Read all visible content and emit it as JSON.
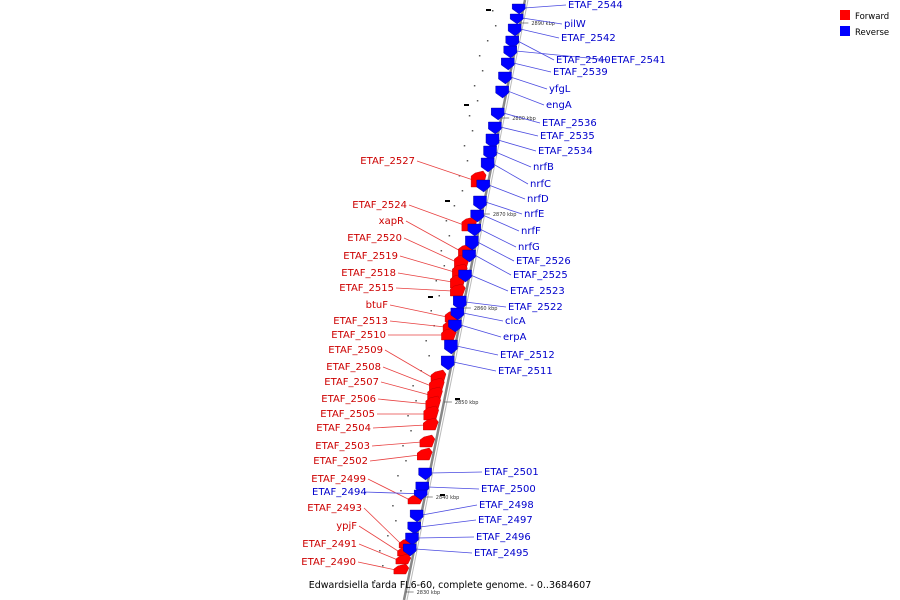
{
  "colors": {
    "forward": "#ff0000",
    "reverse": "#0000ff",
    "forward_label": "#cc0000",
    "reverse_label": "#0000cc",
    "forward_line": "#e84040",
    "reverse_line": "#4a4ae0",
    "backbone": "#888888"
  },
  "legend": {
    "forward": "Forward",
    "reverse": "Reverse"
  },
  "caption": "Edwardsiella tarda FL6-60, complete genome. - 0..3684607",
  "ticks": [
    {
      "label": "2890 kbp"
    },
    {
      "label": "2880 kbp"
    },
    {
      "label": "2870 kbp"
    },
    {
      "label": "2860 kbp"
    },
    {
      "label": "2850 kbp"
    },
    {
      "label": "2840 kbp"
    },
    {
      "label": "2830 kbp"
    }
  ],
  "forward_genes": [
    {
      "name": "ETAF_2527"
    },
    {
      "name": "ETAF_2524"
    },
    {
      "name": "xapR"
    },
    {
      "name": "ETAF_2520"
    },
    {
      "name": "ETAF_2519"
    },
    {
      "name": "ETAF_2518"
    },
    {
      "name": "ETAF_2515"
    },
    {
      "name": "btuF"
    },
    {
      "name": "ETAF_2513"
    },
    {
      "name": "ETAF_2510"
    },
    {
      "name": "ETAF_2509"
    },
    {
      "name": "ETAF_2508"
    },
    {
      "name": "ETAF_2507"
    },
    {
      "name": "ETAF_2506"
    },
    {
      "name": "ETAF_2505"
    },
    {
      "name": "ETAF_2504"
    },
    {
      "name": "ETAF_2503"
    },
    {
      "name": "ETAF_2502"
    },
    {
      "name": "ETAF_2499"
    },
    {
      "name": "ETAF_2493"
    },
    {
      "name": "ypjF"
    },
    {
      "name": "ETAF_2491"
    },
    {
      "name": "ETAF_2490"
    }
  ],
  "reverse_genes": [
    {
      "name": "ETAF_2544"
    },
    {
      "name": "pilW"
    },
    {
      "name": "ETAF_2542"
    },
    {
      "name": "ETAF_2540"
    },
    {
      "name": "ETAF_2541"
    },
    {
      "name": "ETAF_2539"
    },
    {
      "name": "yfgL"
    },
    {
      "name": "engA"
    },
    {
      "name": "ETAF_2536"
    },
    {
      "name": "ETAF_2535"
    },
    {
      "name": "ETAF_2534"
    },
    {
      "name": "nrfB"
    },
    {
      "name": "nrfC"
    },
    {
      "name": "nrfD"
    },
    {
      "name": "nrfE"
    },
    {
      "name": "nrfF"
    },
    {
      "name": "nrfG"
    },
    {
      "name": "ETAF_2526"
    },
    {
      "name": "ETAF_2525"
    },
    {
      "name": "ETAF_2523"
    },
    {
      "name": "ETAF_2522"
    },
    {
      "name": "clcA"
    },
    {
      "name": "erpA"
    },
    {
      "name": "ETAF_2512"
    },
    {
      "name": "ETAF_2511"
    },
    {
      "name": "ETAF_2501"
    },
    {
      "name": "ETAF_2500"
    },
    {
      "name": "ETAF_2494"
    },
    {
      "name": "ETAF_2498"
    },
    {
      "name": "ETAF_2497"
    },
    {
      "name": "ETAF_2496"
    },
    {
      "name": "ETAF_2495"
    }
  ]
}
